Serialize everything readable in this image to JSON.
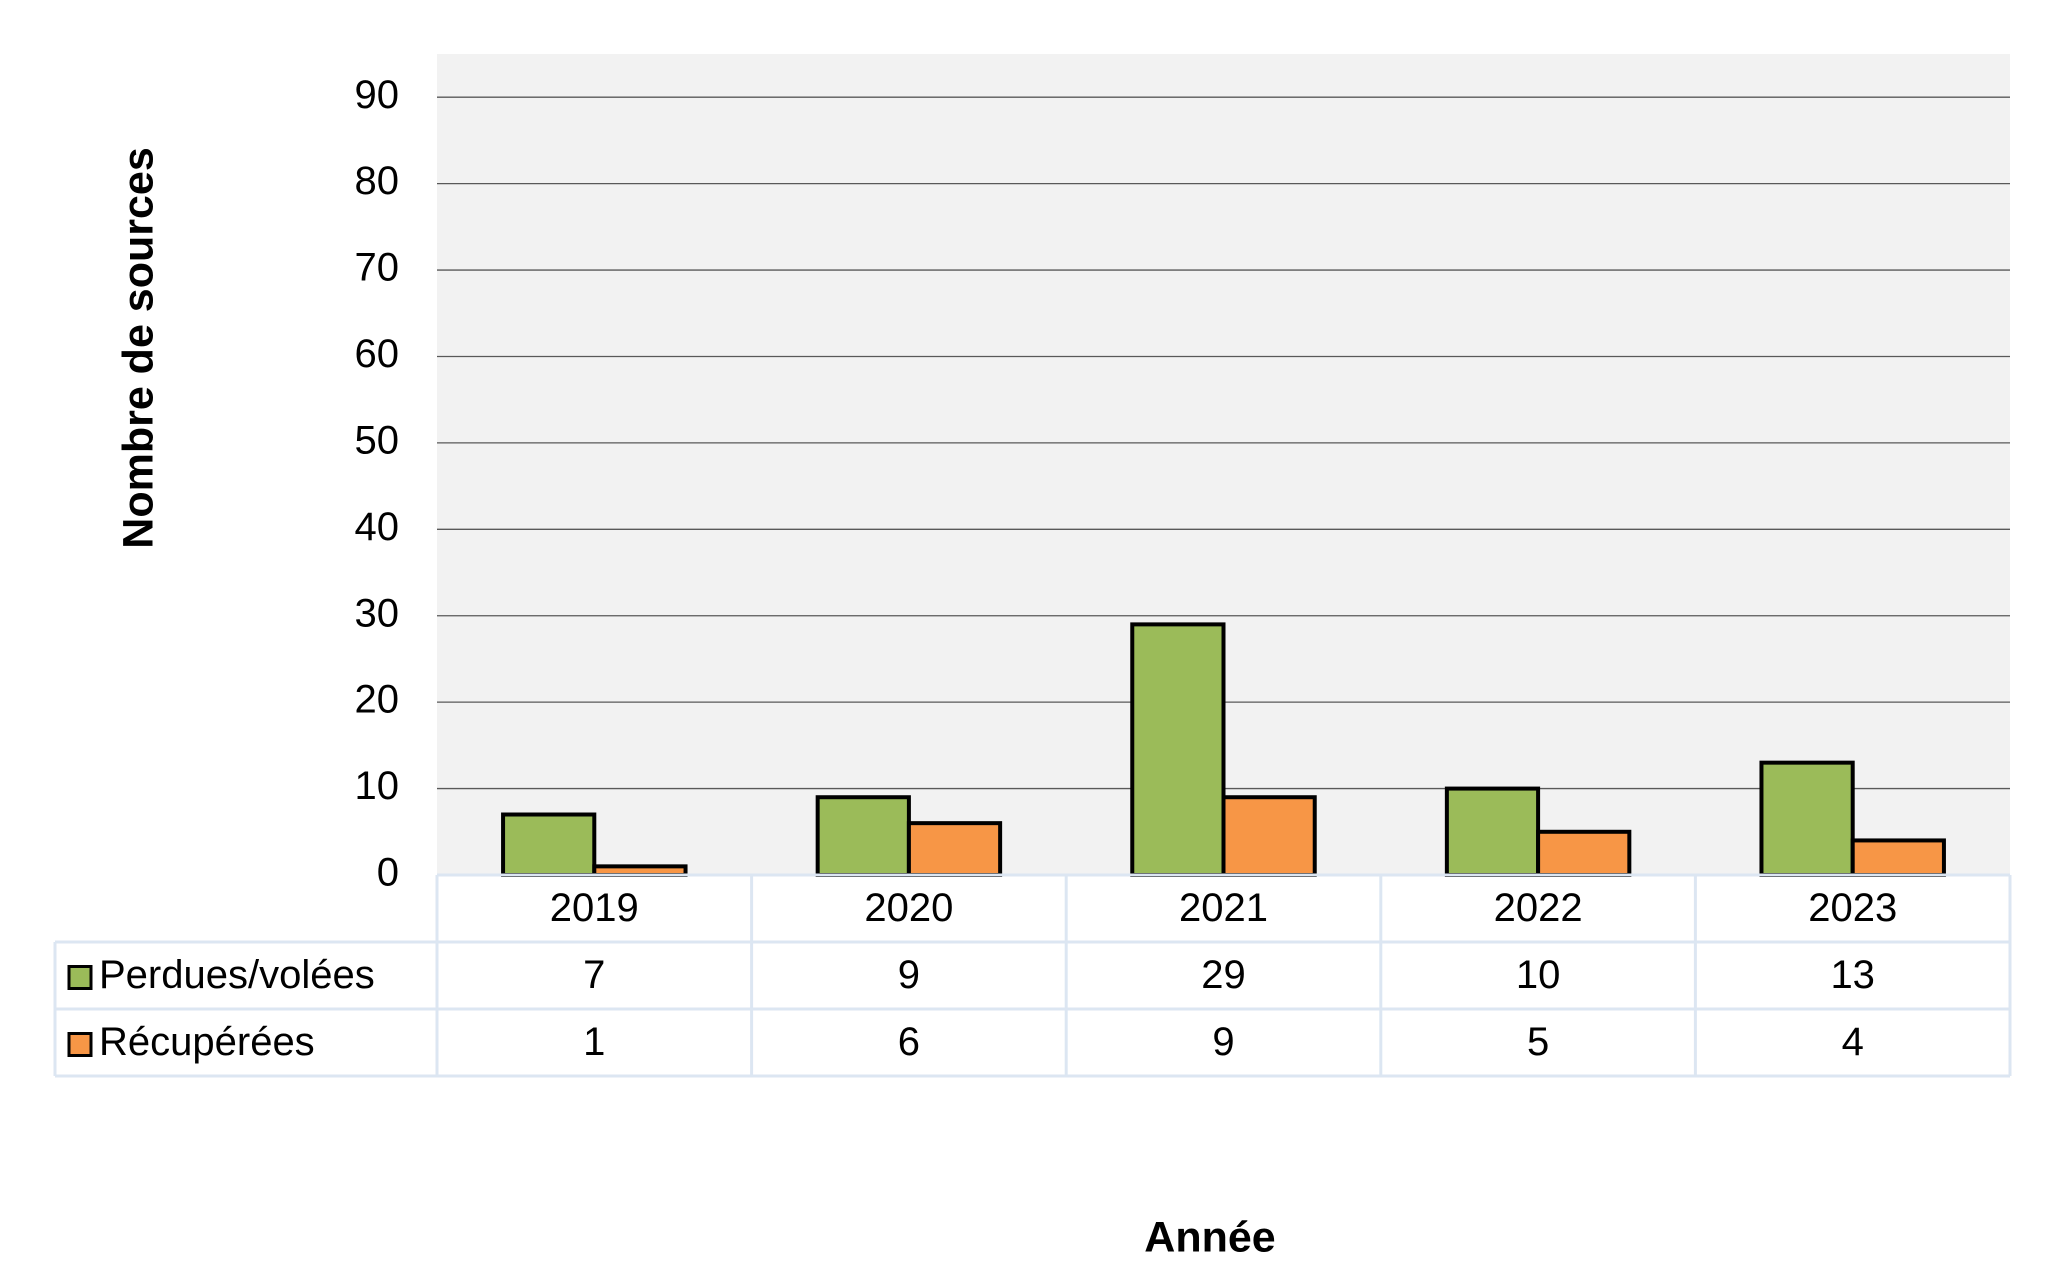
{
  "chart_data": {
    "type": "bar",
    "y_label": "Nombre de sources",
    "x_label": "Année",
    "categories": [
      "2019",
      "2020",
      "2021",
      "2022",
      "2023"
    ],
    "series": [
      {
        "name": "Perdues/volées",
        "color": "#9bbb59",
        "values": [
          7,
          9,
          29,
          10,
          13
        ]
      },
      {
        "name": "Récupérées",
        "color": "#f79646",
        "values": [
          1,
          6,
          9,
          5,
          4
        ]
      }
    ],
    "ylim": [
      0,
      95
    ],
    "yticks": [
      0,
      10,
      20,
      30,
      40,
      50,
      60,
      70,
      80,
      90
    ],
    "grid": true,
    "background": "#f2f2f2",
    "data_table": true
  }
}
